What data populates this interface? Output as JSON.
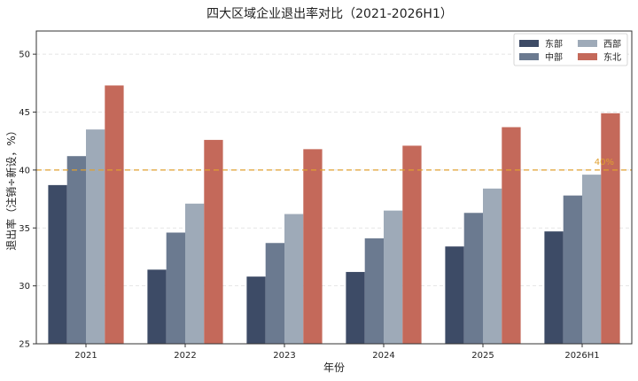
{
  "chart_data": {
    "type": "bar",
    "title": "四大区域企业退出率对比（2021-2026H1）",
    "xlabel": "年份",
    "ylabel": "退出率（注销÷新设，%）",
    "ylim": [
      25,
      52
    ],
    "yticks": [
      25,
      30,
      35,
      40,
      45,
      50
    ],
    "categories": [
      "2021",
      "2022",
      "2023",
      "2024",
      "2025",
      "2026H1"
    ],
    "series": [
      {
        "name": "东部",
        "color": "#3d4b66",
        "values": [
          38.7,
          31.4,
          30.8,
          31.2,
          33.4,
          34.7
        ]
      },
      {
        "name": "中部",
        "color": "#6b7a90",
        "values": [
          41.2,
          34.6,
          33.7,
          34.1,
          36.3,
          37.8
        ]
      },
      {
        "name": "西部",
        "color": "#9eaab8",
        "values": [
          43.5,
          37.1,
          36.2,
          36.5,
          38.4,
          39.6
        ]
      },
      {
        "name": "东北",
        "color": "#c4695a",
        "values": [
          47.3,
          42.6,
          41.8,
          42.1,
          43.7,
          44.9
        ]
      }
    ],
    "reference_line": {
      "value": 40,
      "label": "40%",
      "color": "#e0a030",
      "style": "dashed"
    },
    "grid": true,
    "legend": {
      "position": "top-right",
      "columns": 2
    }
  }
}
